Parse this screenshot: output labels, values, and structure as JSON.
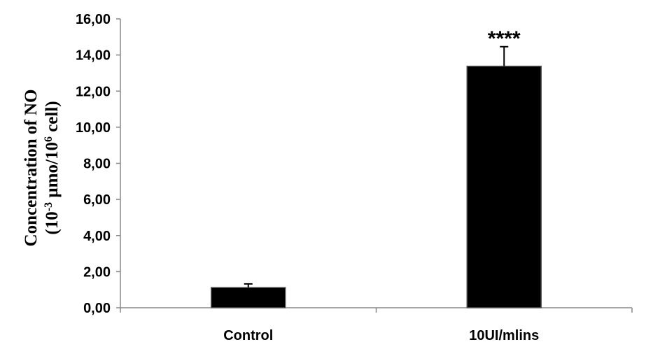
{
  "chart_data": {
    "type": "bar",
    "categories": [
      "Control",
      "10UI/mlins"
    ],
    "values": [
      1.12,
      13.38
    ],
    "error": [
      0.2,
      1.08
    ],
    "annotations": [
      "",
      "****"
    ],
    "ylabel_line1": "Concentration of NO",
    "ylabel_line2_parts": [
      "(10",
      "-3",
      " µmo/10",
      "6",
      " cell)"
    ],
    "ylim": [
      0,
      16
    ],
    "yticks": [
      "0,00",
      "2,00",
      "4,00",
      "6,00",
      "8,00",
      "10,00",
      "12,00",
      "14,00",
      "16,00"
    ],
    "ytick_values": [
      0,
      2,
      4,
      6,
      8,
      10,
      12,
      14,
      16
    ],
    "bar_color": "#000000",
    "grid": false
  }
}
